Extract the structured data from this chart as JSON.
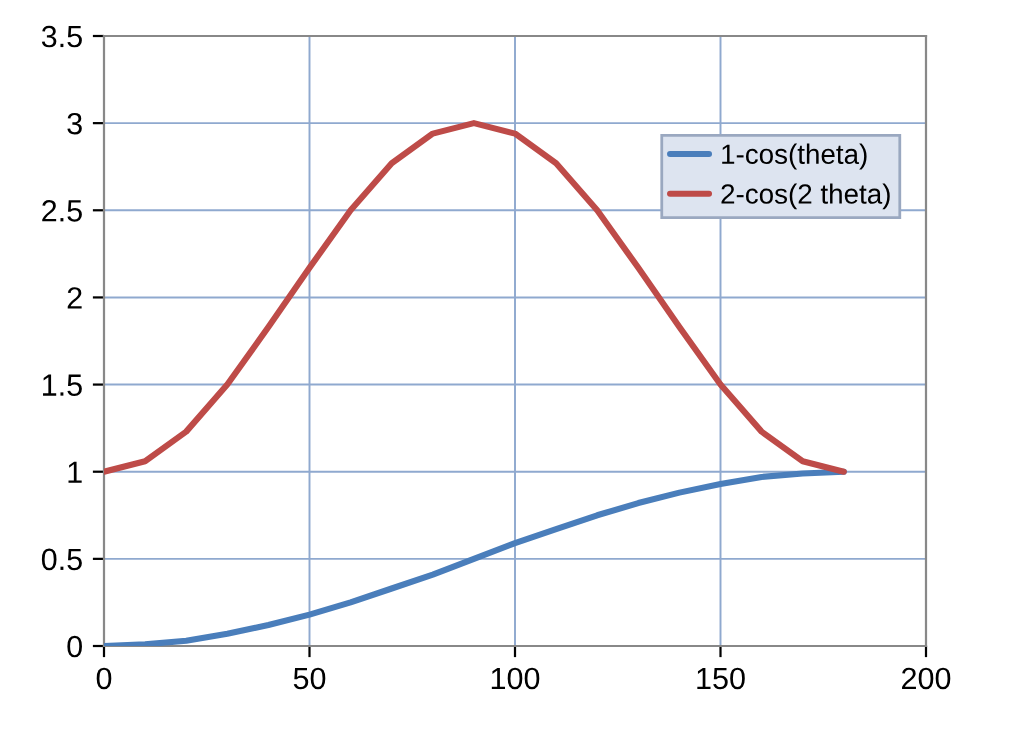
{
  "chart_data": {
    "type": "line",
    "x": [
      0,
      10,
      20,
      30,
      40,
      50,
      60,
      70,
      80,
      90,
      100,
      110,
      120,
      130,
      140,
      150,
      160,
      170,
      180
    ],
    "series": [
      {
        "name": "1-cos(theta)",
        "color": "#4a7ebb",
        "values": [
          0,
          0.01,
          0.03,
          0.07,
          0.12,
          0.18,
          0.25,
          0.33,
          0.41,
          0.5,
          0.59,
          0.67,
          0.75,
          0.82,
          0.88,
          0.93,
          0.97,
          0.99,
          1
        ]
      },
      {
        "name": "2-cos(2 theta)",
        "color": "#be4b48",
        "values": [
          1,
          1.06,
          1.23,
          1.5,
          1.83,
          2.17,
          2.5,
          2.77,
          2.94,
          3,
          2.94,
          2.77,
          2.5,
          2.17,
          1.83,
          1.5,
          1.23,
          1.06,
          1
        ]
      }
    ],
    "xlim": [
      0,
      200
    ],
    "xticks": [
      0,
      50,
      100,
      150,
      200
    ],
    "ylim": [
      0,
      3.5
    ],
    "yticks": [
      0,
      0.5,
      1,
      1.5,
      2,
      2.5,
      3,
      3.5
    ],
    "grid": true,
    "legend": "top right",
    "marker": "none",
    "line_style": "solid"
  }
}
